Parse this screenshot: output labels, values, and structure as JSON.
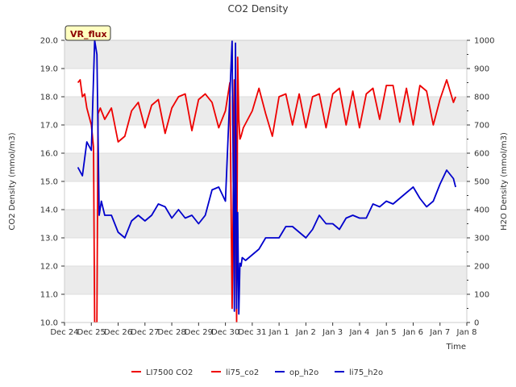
{
  "chart_data": {
    "type": "line",
    "title": "CO2 Density",
    "xlabel": "Time",
    "ylabel_left": "CO2 Density (mmol/m3)",
    "ylabel_right": "H2O Density (mmol/m3)",
    "ylim_left": [
      10.0,
      20.0
    ],
    "ylim_right": [
      0,
      1000
    ],
    "xlim": [
      "2023-12-24",
      "2024-01-08"
    ],
    "x_tick_labels": [
      "Dec 24",
      "Dec 25",
      "Dec 26",
      "Dec 27",
      "Dec 28",
      "Dec 29",
      "Dec 30",
      "Dec 31",
      "Jan 1",
      "Jan 2",
      "Jan 3",
      "Jan 4",
      "Jan 5",
      "Jan 6",
      "Jan 7",
      "Jan 8"
    ],
    "y_left_tick_labels": [
      "10.0",
      "11.0",
      "12.0",
      "13.0",
      "14.0",
      "15.0",
      "16.0",
      "17.0",
      "18.0",
      "19.0",
      "20.0"
    ],
    "y_right_tick_labels": [
      "0",
      "100",
      "200",
      "300",
      "400",
      "500",
      "600",
      "700",
      "800",
      "900",
      "1000"
    ],
    "grid": "horizontal bands",
    "legend_placement": "bottom-center",
    "badge": "VR_flux",
    "colors": {
      "co2": "#ee0000",
      "h2o": "#0000cc",
      "band": "#ebebeb",
      "badge_bg": "#ffffc0"
    },
    "series": [
      {
        "name": "LI7500 CO2",
        "axis": "left",
        "color": "#ee0000",
        "x": [],
        "y": []
      },
      {
        "name": "li75_co2",
        "axis": "left",
        "color": "#ee0000",
        "x": [
          "2023-12-24 12:00",
          "2023-12-24 14:00",
          "2023-12-24 16:00",
          "2023-12-24 18:00",
          "2023-12-24 20:00",
          "2023-12-24 22:00",
          "2023-12-25 00:00",
          "2023-12-25 01:00",
          "2023-12-25 02:00",
          "2023-12-25 03:00",
          "2023-12-25 05:00",
          "2023-12-25 06:00",
          "2023-12-25 08:00",
          "2023-12-25 12:00",
          "2023-12-25 18:00",
          "2023-12-26 00:00",
          "2023-12-26 06:00",
          "2023-12-26 12:00",
          "2023-12-26 18:00",
          "2023-12-27 00:00",
          "2023-12-27 06:00",
          "2023-12-27 12:00",
          "2023-12-27 18:00",
          "2023-12-28 00:00",
          "2023-12-28 06:00",
          "2023-12-28 12:00",
          "2023-12-28 18:00",
          "2023-12-29 00:00",
          "2023-12-29 06:00",
          "2023-12-29 12:00",
          "2023-12-29 18:00",
          "2023-12-30 00:00",
          "2023-12-30 04:00",
          "2023-12-30 06:00",
          "2023-12-30 08:00",
          "2023-12-30 10:00",
          "2023-12-30 11:00",
          "2023-12-30 12:00",
          "2023-12-30 13:00",
          "2023-12-30 14:00",
          "2023-12-30 16:00",
          "2023-12-31 00:00",
          "2023-12-31 06:00",
          "2023-12-31 12:00",
          "2023-12-31 18:00",
          "2024-01-01 00:00",
          "2024-01-01 06:00",
          "2024-01-01 12:00",
          "2024-01-01 18:00",
          "2024-01-02 00:00",
          "2024-01-02 06:00",
          "2024-01-02 12:00",
          "2024-01-02 18:00",
          "2024-01-03 00:00",
          "2024-01-03 06:00",
          "2024-01-03 12:00",
          "2024-01-03 18:00",
          "2024-01-04 00:00",
          "2024-01-04 06:00",
          "2024-01-04 12:00",
          "2024-01-04 18:00",
          "2024-01-05 00:00",
          "2024-01-05 06:00",
          "2024-01-05 12:00",
          "2024-01-05 18:00",
          "2024-01-06 00:00",
          "2024-01-06 06:00",
          "2024-01-06 12:00",
          "2024-01-06 18:00",
          "2024-01-07 00:00",
          "2024-01-07 06:00",
          "2024-01-07 12:00",
          "2024-01-07 14:00"
        ],
        "y": [
          18.5,
          18.6,
          18.0,
          18.1,
          17.6,
          17.3,
          17.0,
          16.6,
          16.2,
          10.0,
          10.0,
          17.4,
          17.6,
          17.2,
          17.6,
          16.4,
          16.6,
          17.5,
          17.8,
          16.9,
          17.7,
          17.9,
          16.7,
          17.6,
          18.0,
          18.1,
          16.8,
          17.9,
          18.1,
          17.8,
          16.9,
          17.5,
          18.5,
          10.5,
          18.6,
          10.0,
          19.4,
          17.2,
          16.5,
          16.6,
          16.9,
          17.5,
          18.3,
          17.4,
          16.6,
          18.0,
          18.1,
          17.0,
          18.1,
          16.9,
          18.0,
          18.1,
          16.9,
          18.1,
          18.3,
          17.0,
          18.2,
          16.9,
          18.1,
          18.3,
          17.2,
          18.4,
          18.4,
          17.1,
          18.3,
          17.0,
          18.4,
          18.2,
          17.0,
          17.9,
          18.6,
          17.8,
          18.0
        ]
      },
      {
        "name": "op_h2o",
        "axis": "right",
        "color": "#0000cc",
        "x": [],
        "y": []
      },
      {
        "name": "li75_h2o",
        "axis": "right",
        "color": "#0000cc",
        "x": [
          "2023-12-24 12:00",
          "2023-12-24 16:00",
          "2023-12-24 20:00",
          "2023-12-25 00:00",
          "2023-12-25 03:00",
          "2023-12-25 05:00",
          "2023-12-25 07:00",
          "2023-12-25 09:00",
          "2023-12-25 12:00",
          "2023-12-25 18:00",
          "2023-12-26 00:00",
          "2023-12-26 06:00",
          "2023-12-26 12:00",
          "2023-12-26 18:00",
          "2023-12-27 00:00",
          "2023-12-27 06:00",
          "2023-12-27 12:00",
          "2023-12-27 18:00",
          "2023-12-28 00:00",
          "2023-12-28 06:00",
          "2023-12-28 12:00",
          "2023-12-28 18:00",
          "2023-12-29 00:00",
          "2023-12-29 06:00",
          "2023-12-29 12:00",
          "2023-12-29 18:00",
          "2023-12-30 00:00",
          "2023-12-30 06:00",
          "2023-12-30 08:00",
          "2023-12-30 09:00",
          "2023-12-30 10:00",
          "2023-12-30 11:00",
          "2023-12-30 12:00",
          "2023-12-30 13:00",
          "2023-12-30 14:00",
          "2023-12-30 15:00",
          "2023-12-30 18:00",
          "2023-12-31 00:00",
          "2023-12-31 06:00",
          "2023-12-31 12:00",
          "2023-12-31 18:00",
          "2024-01-01 00:00",
          "2024-01-01 06:00",
          "2024-01-01 12:00",
          "2024-01-01 18:00",
          "2024-01-02 00:00",
          "2024-01-02 06:00",
          "2024-01-02 12:00",
          "2024-01-02 18:00",
          "2024-01-03 00:00",
          "2024-01-03 06:00",
          "2024-01-03 12:00",
          "2024-01-03 18:00",
          "2024-01-04 00:00",
          "2024-01-04 06:00",
          "2024-01-04 12:00",
          "2024-01-04 18:00",
          "2024-01-05 00:00",
          "2024-01-05 06:00",
          "2024-01-05 12:00",
          "2024-01-05 18:00",
          "2024-01-06 00:00",
          "2024-01-06 06:00",
          "2024-01-06 12:00",
          "2024-01-06 18:00",
          "2024-01-07 00:00",
          "2024-01-07 06:00",
          "2024-01-07 12:00",
          "2024-01-07 14:00"
        ],
        "y": [
          550,
          520,
          640,
          610,
          1000,
          950,
          380,
          430,
          380,
          380,
          320,
          300,
          360,
          380,
          360,
          380,
          420,
          410,
          370,
          400,
          370,
          380,
          350,
          380,
          470,
          480,
          430,
          1000,
          40,
          990,
          50,
          390,
          30,
          210,
          200,
          230,
          220,
          240,
          260,
          300,
          300,
          300,
          340,
          340,
          320,
          300,
          330,
          380,
          350,
          350,
          330,
          370,
          380,
          370,
          370,
          420,
          410,
          430,
          420,
          440,
          460,
          480,
          440,
          410,
          430,
          490,
          540,
          510,
          480
        ]
      }
    ]
  }
}
